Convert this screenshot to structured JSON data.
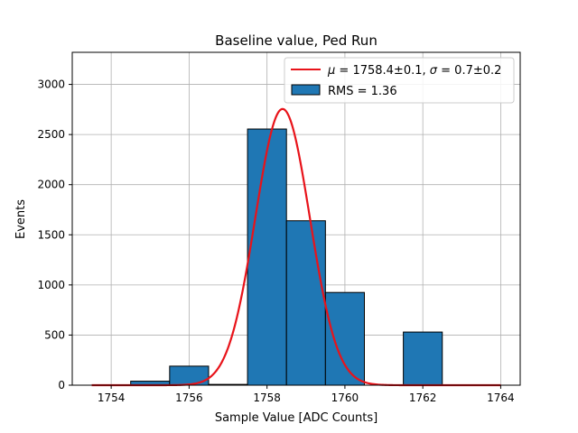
{
  "chart_data": {
    "type": "bar",
    "title": "Baseline value, Ped Run",
    "xlabel": "Sample Value [ADC Counts]",
    "ylabel": "Events",
    "xlim": [
      1753,
      1764.5
    ],
    "ylim": [
      0,
      3320
    ],
    "xticks": [
      1754,
      1756,
      1758,
      1760,
      1762,
      1764
    ],
    "yticks": [
      0,
      500,
      1000,
      1500,
      2000,
      2500,
      3000
    ],
    "grid": true,
    "legend_position": "top-right",
    "histogram": {
      "name": "RMS = 1.36",
      "color": "#1f77b4",
      "edge_color": "#000000",
      "bins": [
        {
          "x0": 1753.5,
          "x1": 1754.5,
          "value": 0
        },
        {
          "x0": 1754.5,
          "x1": 1755.5,
          "value": 40
        },
        {
          "x0": 1755.5,
          "x1": 1756.5,
          "value": 190
        },
        {
          "x0": 1756.5,
          "x1": 1757.5,
          "value": 8
        },
        {
          "x0": 1757.5,
          "x1": 1758.5,
          "value": 2555
        },
        {
          "x0": 1758.5,
          "x1": 1759.5,
          "value": 1640
        },
        {
          "x0": 1759.5,
          "x1": 1760.5,
          "value": 925
        },
        {
          "x0": 1760.5,
          "x1": 1761.5,
          "value": 0
        },
        {
          "x0": 1761.5,
          "x1": 1762.5,
          "value": 530
        },
        {
          "x0": 1762.5,
          "x1": 1763.5,
          "value": 0
        }
      ]
    },
    "fit": {
      "name": "μ = 1758.4±0.1, σ = 0.7±0.2",
      "name_parts": {
        "mu_symbol": "μ",
        "mu_text": " = 1758.4±0.1, ",
        "sigma_symbol": "σ",
        "sigma_text": " = 0.7±0.2"
      },
      "color": "#e8131a",
      "type": "gaussian",
      "mu": 1758.4,
      "sigma": 0.7,
      "amplitude": 2755,
      "x_range": [
        1753.5,
        1764
      ]
    }
  }
}
